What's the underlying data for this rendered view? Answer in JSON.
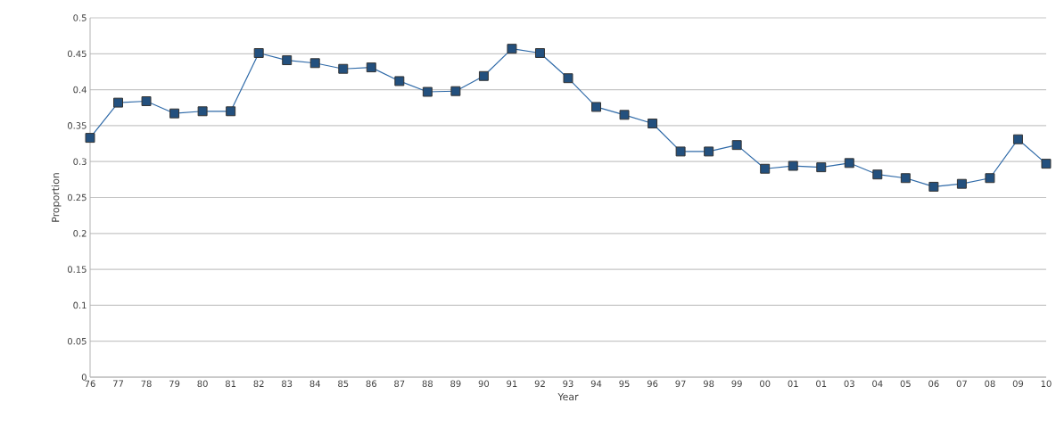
{
  "chart_data": {
    "type": "line",
    "xlabel": "Year",
    "ylabel": "Proportion",
    "categories": [
      "76",
      "77",
      "78",
      "79",
      "80",
      "81",
      "82",
      "83",
      "84",
      "85",
      "86",
      "87",
      "88",
      "89",
      "90",
      "91",
      "92",
      "93",
      "94",
      "95",
      "96",
      "97",
      "98",
      "99",
      "00",
      "01",
      "01",
      "03",
      "04",
      "05",
      "06",
      "07",
      "08",
      "09",
      "10"
    ],
    "series": [
      {
        "color": "#2f6aa8",
        "values": [
          0.333,
          0.382,
          0.384,
          0.367,
          0.37,
          0.37,
          0.451,
          0.441,
          0.437,
          0.429,
          0.431,
          0.412,
          0.397,
          0.398,
          0.419,
          0.457,
          0.451,
          0.416,
          0.376,
          0.365,
          0.353,
          0.314,
          0.314,
          0.323,
          0.29,
          0.294,
          0.292,
          0.298,
          0.282,
          0.277,
          0.265,
          0.269,
          0.277,
          0.331,
          0.297
        ]
      }
    ],
    "ylim": [
      0,
      0.5
    ],
    "yticks": [
      0,
      0.05,
      0.1,
      0.15,
      0.2,
      0.25,
      0.3,
      0.35,
      0.4,
      0.45,
      0.5
    ],
    "grid": "y",
    "marker": "square",
    "line_style": "solid"
  }
}
